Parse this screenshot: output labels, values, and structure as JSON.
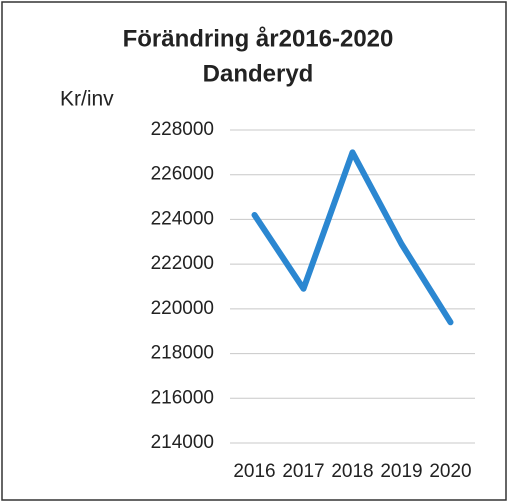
{
  "chart_data": {
    "type": "line",
    "title": "Förändring år2016-2020",
    "subtitle": "Danderyd",
    "y_label": "Kr/inv",
    "categories": [
      "2016",
      "2017",
      "2018",
      "2019",
      "2020"
    ],
    "series": [
      {
        "name": "Danderyd",
        "color": "#2b87d1",
        "values": [
          224200,
          220900,
          227000,
          222900,
          219400
        ]
      }
    ],
    "ylim": [
      214000,
      228000
    ],
    "yticks": [
      214000,
      216000,
      218000,
      220000,
      222000,
      224000,
      226000,
      228000
    ],
    "grid": true
  }
}
